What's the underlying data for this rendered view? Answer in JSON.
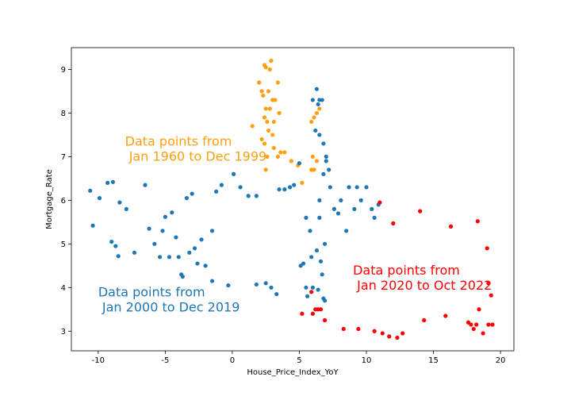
{
  "chart_data": {
    "type": "scatter",
    "title": "",
    "xlabel": "House_Price_Index_YoY",
    "ylabel": "Mortgage_Rate",
    "xlim": [
      -12,
      21
    ],
    "ylim": [
      2.55,
      9.5
    ],
    "xticks": [
      -10,
      -5,
      0,
      5,
      10,
      15,
      20
    ],
    "yticks": [
      3,
      4,
      5,
      6,
      7,
      8,
      9
    ],
    "grid": false,
    "legend": "none",
    "series": [
      {
        "color": "#ff9f0e",
        "points": [
          [
            2.4,
            9.1
          ],
          [
            2.5,
            9.05
          ],
          [
            2.9,
            9.2
          ],
          [
            2.8,
            9.0
          ],
          [
            2.0,
            8.7
          ],
          [
            2.2,
            8.5
          ],
          [
            2.3,
            8.4
          ],
          [
            3.4,
            8.7
          ],
          [
            2.7,
            8.5
          ],
          [
            3.0,
            8.3
          ],
          [
            3.2,
            8.3
          ],
          [
            2.5,
            8.1
          ],
          [
            2.8,
            8.1
          ],
          [
            3.5,
            8.0
          ],
          [
            2.4,
            7.9
          ],
          [
            2.6,
            7.8
          ],
          [
            3.1,
            7.8
          ],
          [
            1.5,
            7.7
          ],
          [
            2.7,
            7.6
          ],
          [
            3.0,
            7.5
          ],
          [
            2.2,
            7.4
          ],
          [
            2.4,
            7.3
          ],
          [
            3.1,
            7.2
          ],
          [
            2.6,
            7.0
          ],
          [
            3.4,
            7.0
          ],
          [
            2.5,
            6.7
          ],
          [
            3.6,
            7.1
          ],
          [
            3.9,
            7.1
          ],
          [
            4.4,
            6.9
          ],
          [
            4.9,
            6.8
          ],
          [
            5.2,
            6.4
          ],
          [
            5.9,
            6.7
          ],
          [
            6.1,
            6.7
          ],
          [
            6.0,
            7.0
          ],
          [
            6.3,
            6.9
          ],
          [
            5.9,
            7.8
          ],
          [
            6.1,
            7.9
          ],
          [
            6.3,
            8.0
          ],
          [
            6.5,
            8.1
          ]
        ]
      },
      {
        "color": "#1f77b4",
        "points": [
          [
            -10.6,
            6.22
          ],
          [
            -10.4,
            5.42
          ],
          [
            -9.9,
            6.05
          ],
          [
            -9.3,
            6.4
          ],
          [
            -8.9,
            6.42
          ],
          [
            -9.0,
            5.05
          ],
          [
            -8.7,
            4.95
          ],
          [
            -8.5,
            4.72
          ],
          [
            -8.4,
            5.95
          ],
          [
            -7.9,
            5.8
          ],
          [
            -7.3,
            4.8
          ],
          [
            -6.5,
            6.35
          ],
          [
            -6.2,
            5.35
          ],
          [
            -5.8,
            5.0
          ],
          [
            -5.4,
            4.7
          ],
          [
            -5.2,
            5.3
          ],
          [
            -5.0,
            5.62
          ],
          [
            -4.7,
            4.7
          ],
          [
            -4.5,
            5.72
          ],
          [
            -4.2,
            5.15
          ],
          [
            -4.0,
            4.7
          ],
          [
            -3.8,
            4.3
          ],
          [
            -3.7,
            4.25
          ],
          [
            -3.4,
            6.05
          ],
          [
            -3.2,
            4.8
          ],
          [
            -3.0,
            6.15
          ],
          [
            -2.8,
            4.9
          ],
          [
            -2.6,
            4.55
          ],
          [
            -2.3,
            5.1
          ],
          [
            -2.0,
            4.5
          ],
          [
            -1.5,
            4.15
          ],
          [
            -1.5,
            5.3
          ],
          [
            -1.2,
            6.2
          ],
          [
            -0.8,
            6.35
          ],
          [
            -0.3,
            4.05
          ],
          [
            0.1,
            6.6
          ],
          [
            0.6,
            6.3
          ],
          [
            1.2,
            6.1
          ],
          [
            1.8,
            6.1
          ],
          [
            1.8,
            4.07
          ],
          [
            2.5,
            4.1
          ],
          [
            2.9,
            4.0
          ],
          [
            3.3,
            3.85
          ],
          [
            3.5,
            6.25
          ],
          [
            3.9,
            6.25
          ],
          [
            4.3,
            6.3
          ],
          [
            4.6,
            6.35
          ],
          [
            5.0,
            6.85
          ],
          [
            5.1,
            4.5
          ],
          [
            5.3,
            4.55
          ],
          [
            5.5,
            4.0
          ],
          [
            5.6,
            3.8
          ],
          [
            5.9,
            4.7
          ],
          [
            6.0,
            4.0
          ],
          [
            6.3,
            4.85
          ],
          [
            6.4,
            3.95
          ],
          [
            6.6,
            4.6
          ],
          [
            6.7,
            4.3
          ],
          [
            6.8,
            3.75
          ],
          [
            6.9,
            3.7
          ],
          [
            5.5,
            5.6
          ],
          [
            5.8,
            5.3
          ],
          [
            6.5,
            5.6
          ],
          [
            6.9,
            5.0
          ],
          [
            6.5,
            6.0
          ],
          [
            6.8,
            6.6
          ],
          [
            7.2,
            6.7
          ],
          [
            7.0,
            6.9
          ],
          [
            7.3,
            6.3
          ],
          [
            7.6,
            5.8
          ],
          [
            7.9,
            5.7
          ],
          [
            8.1,
            6.0
          ],
          [
            8.5,
            5.3
          ],
          [
            8.7,
            6.3
          ],
          [
            9.1,
            5.8
          ],
          [
            9.3,
            6.3
          ],
          [
            9.6,
            6.0
          ],
          [
            10.0,
            6.3
          ],
          [
            10.4,
            5.8
          ],
          [
            10.6,
            5.6
          ],
          [
            10.9,
            5.9
          ],
          [
            6.0,
            8.3
          ],
          [
            6.3,
            8.55
          ],
          [
            6.4,
            8.2
          ],
          [
            6.5,
            8.3
          ],
          [
            6.7,
            8.3
          ],
          [
            6.2,
            7.6
          ],
          [
            6.5,
            7.5
          ],
          [
            6.8,
            7.3
          ],
          [
            7.0,
            7.0
          ]
        ]
      },
      {
        "color": "#ff0000",
        "points": [
          [
            5.2,
            3.4
          ],
          [
            5.9,
            3.9
          ],
          [
            6.0,
            3.4
          ],
          [
            6.2,
            3.5
          ],
          [
            6.4,
            3.5
          ],
          [
            6.6,
            3.5
          ],
          [
            6.9,
            3.25
          ],
          [
            8.3,
            3.05
          ],
          [
            9.4,
            3.05
          ],
          [
            10.6,
            3.0
          ],
          [
            11.2,
            2.95
          ],
          [
            11.7,
            2.88
          ],
          [
            12.3,
            2.85
          ],
          [
            12.7,
            2.95
          ],
          [
            11.0,
            5.95
          ],
          [
            12.0,
            5.47
          ],
          [
            14.0,
            5.75
          ],
          [
            14.3,
            3.25
          ],
          [
            15.9,
            3.35
          ],
          [
            16.3,
            5.4
          ],
          [
            17.6,
            3.2
          ],
          [
            17.8,
            3.15
          ],
          [
            18.0,
            3.05
          ],
          [
            18.2,
            3.15
          ],
          [
            18.4,
            3.5
          ],
          [
            18.3,
            5.52
          ],
          [
            18.7,
            2.95
          ],
          [
            19.0,
            4.9
          ],
          [
            19.1,
            4.1
          ],
          [
            19.1,
            3.15
          ],
          [
            19.3,
            3.82
          ],
          [
            19.4,
            3.15
          ]
        ]
      }
    ],
    "annotations": [
      {
        "lines": [
          "Data points from",
          " Jan 1960 to Dec 1999"
        ],
        "color": "#ff9f0e",
        "x": -8.0,
        "y": 7.25
      },
      {
        "lines": [
          "Data points from",
          " Jan 2000 to Dec 2019"
        ],
        "color": "#1f77b4",
        "x": -10.0,
        "y": 3.8
      },
      {
        "lines": [
          "Data points from",
          " Jan 2020 to Oct 2022"
        ],
        "color": "#ff0000",
        "x": 9.0,
        "y": 4.3
      }
    ]
  }
}
